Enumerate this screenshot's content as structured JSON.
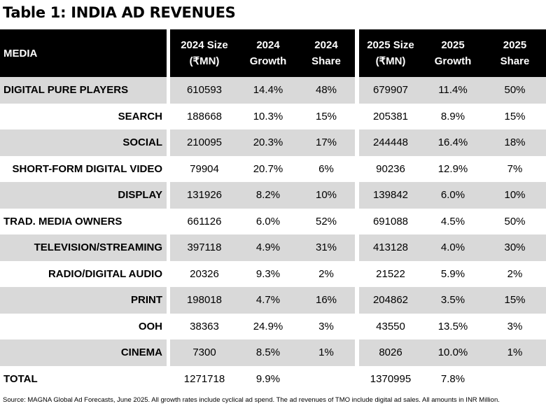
{
  "title": "Table 1: INDIA AD REVENUES",
  "headers": {
    "media": "MEDIA",
    "size_2024": "2024 Size\n(₹MN)",
    "growth_2024": "2024\nGrowth",
    "share_2024": "2024\nShare",
    "size_2025": "2025 Size\n(₹MN)",
    "growth_2025": "2025\nGrowth",
    "share_2025": "2025\nShare"
  },
  "rows": [
    {
      "media": "DIGITAL PURE PLAYERS",
      "size_2024": "610593",
      "growth_2024": "14.4%",
      "share_2024": "48%",
      "size_2025": "679907",
      "growth_2025": "11.4%",
      "share_2025": "50%"
    },
    {
      "media": "SEARCH",
      "size_2024": "188668",
      "growth_2024": "10.3%",
      "share_2024": "15%",
      "size_2025": "205381",
      "growth_2025": "8.9%",
      "share_2025": "15%"
    },
    {
      "media": "SOCIAL",
      "size_2024": "210095",
      "growth_2024": "20.3%",
      "share_2024": "17%",
      "size_2025": "244448",
      "growth_2025": "16.4%",
      "share_2025": "18%"
    },
    {
      "media": "SHORT-FORM DIGITAL VIDEO",
      "size_2024": "79904",
      "growth_2024": "20.7%",
      "share_2024": "6%",
      "size_2025": "90236",
      "growth_2025": "12.9%",
      "share_2025": "7%"
    },
    {
      "media": "DISPLAY",
      "size_2024": "131926",
      "growth_2024": "8.2%",
      "share_2024": "10%",
      "size_2025": "139842",
      "growth_2025": "6.0%",
      "share_2025": "10%"
    },
    {
      "media": "TRAD. MEDIA OWNERS",
      "size_2024": "661126",
      "growth_2024": "6.0%",
      "share_2024": "52%",
      "size_2025": "691088",
      "growth_2025": "4.5%",
      "share_2025": "50%"
    },
    {
      "media": "TELEVISION/STREAMING",
      "size_2024": "397118",
      "growth_2024": "4.9%",
      "share_2024": "31%",
      "size_2025": "413128",
      "growth_2025": "4.0%",
      "share_2025": "30%"
    },
    {
      "media": "RADIO/DIGITAL AUDIO",
      "size_2024": "20326",
      "growth_2024": "9.3%",
      "share_2024": "2%",
      "size_2025": "21522",
      "growth_2025": "5.9%",
      "share_2025": "2%"
    },
    {
      "media": "PRINT",
      "size_2024": "198018",
      "growth_2024": "4.7%",
      "share_2024": "16%",
      "size_2025": "204862",
      "growth_2025": "3.5%",
      "share_2025": "15%"
    },
    {
      "media": "OOH",
      "size_2024": "38363",
      "growth_2024": "24.9%",
      "share_2024": "3%",
      "size_2025": "43550",
      "growth_2025": "13.5%",
      "share_2025": "3%"
    },
    {
      "media": "CINEMA",
      "size_2024": "7300",
      "growth_2024": "8.5%",
      "share_2024": "1%",
      "size_2025": "8026",
      "growth_2025": "10.0%",
      "share_2025": "1%"
    },
    {
      "media": "TOTAL",
      "size_2024": "1271718",
      "growth_2024": "9.9%",
      "share_2024": "",
      "size_2025": "1370995",
      "growth_2025": "7.8%",
      "share_2025": ""
    }
  ],
  "source": "Source: MAGNA Global Ad Forecasts, June 2025. All growth rates include cyclical ad spend. The ad revenues of TMO include digital ad sales. All amounts in INR Million.",
  "colors": {
    "header_bg": "#000000",
    "header_text": "#ffffff",
    "shade": "#d9d9d9"
  }
}
